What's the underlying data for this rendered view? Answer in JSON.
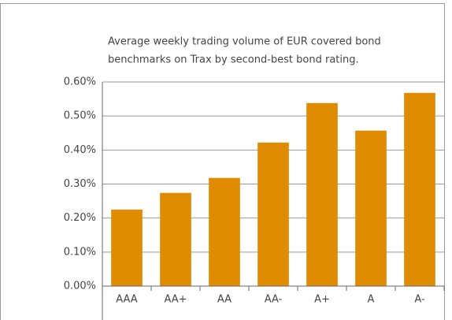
{
  "chart_data": {
    "type": "bar",
    "title": [
      "Average weekly trading volume of EUR covered bond",
      "benchmarks on Trax by second-best bond rating."
    ],
    "categories": [
      "AAA",
      "AA+",
      "AA",
      "AA-",
      "A+",
      "A",
      "A-"
    ],
    "values": [
      0.225,
      0.274,
      0.318,
      0.422,
      0.538,
      0.457,
      0.568
    ],
    "color": "#e08c00",
    "ylim": [
      0,
      0.6
    ],
    "yticks": [
      {
        "value": 0,
        "label": "0.00%"
      },
      {
        "value": 0.1,
        "label": "0.10%"
      },
      {
        "value": 0.2,
        "label": "0.20%"
      },
      {
        "value": 0.3,
        "label": "0.30%"
      },
      {
        "value": 0.4,
        "label": "0.40%"
      },
      {
        "value": 0.5,
        "label": "0.50%"
      },
      {
        "value": 0.6,
        "label": "0.60%"
      }
    ],
    "grid": true
  }
}
